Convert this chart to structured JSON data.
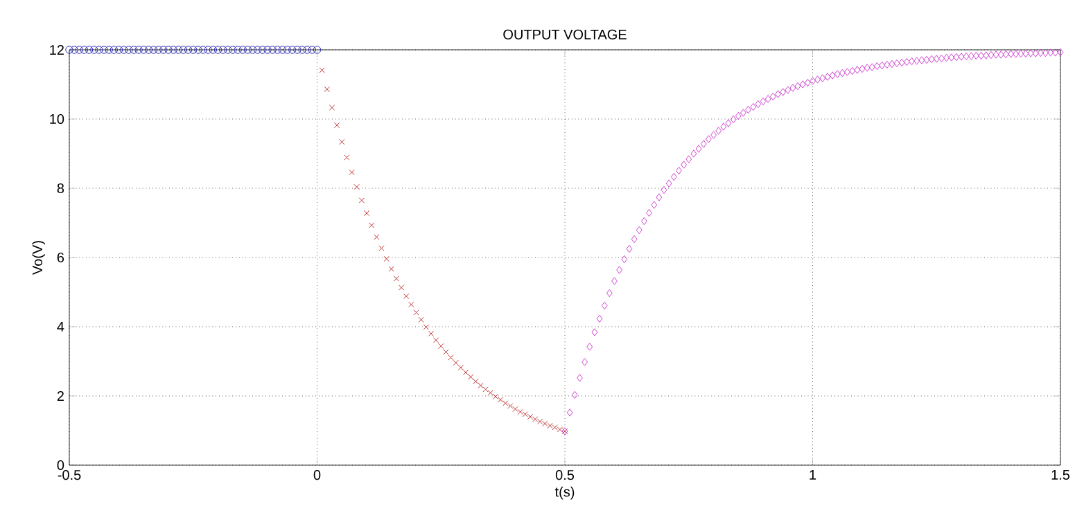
{
  "chart_data": {
    "type": "scatter",
    "title": "OUTPUT VOLTAGE",
    "xlabel": "t(s)",
    "ylabel": "Vo(V)",
    "xlim": [
      -0.5,
      1.5
    ],
    "ylim": [
      0,
      12
    ],
    "xticks": [
      -0.5,
      0,
      0.5,
      1,
      1.5
    ],
    "yticks": [
      0,
      2,
      4,
      6,
      8,
      10,
      12
    ],
    "grid": true,
    "series": [
      {
        "color": "#2a2ab0",
        "marker": "circle",
        "x": [
          -0.5,
          -0.49,
          -0.48,
          -0.47,
          -0.46,
          -0.45,
          -0.44,
          -0.43,
          -0.42,
          -0.41,
          -0.4,
          -0.39,
          -0.38,
          -0.37,
          -0.36,
          -0.35,
          -0.34,
          -0.33,
          -0.32,
          -0.31,
          -0.3,
          -0.29,
          -0.28,
          -0.27,
          -0.26,
          -0.25,
          -0.24,
          -0.23,
          -0.22,
          -0.21,
          -0.2,
          -0.19,
          -0.18,
          -0.17,
          -0.16,
          -0.15,
          -0.14,
          -0.13,
          -0.12,
          -0.11,
          -0.1,
          -0.09,
          -0.08,
          -0.07,
          -0.06,
          -0.05,
          -0.04,
          -0.03,
          -0.02,
          -0.01,
          0
        ],
        "values": [
          12,
          12,
          12,
          12,
          12,
          12,
          12,
          12,
          12,
          12,
          12,
          12,
          12,
          12,
          12,
          12,
          12,
          12,
          12,
          12,
          12,
          12,
          12,
          12,
          12,
          12,
          12,
          12,
          12,
          12,
          12,
          12,
          12,
          12,
          12,
          12,
          12,
          12,
          12,
          12,
          12,
          12,
          12,
          12,
          12,
          12,
          12,
          12,
          12,
          12,
          12
        ]
      },
      {
        "color": "#c03030",
        "marker": "cross",
        "x": [
          0.01,
          0.02,
          0.03,
          0.04,
          0.05,
          0.06,
          0.07,
          0.08,
          0.09,
          0.1,
          0.11,
          0.12,
          0.13,
          0.14,
          0.15,
          0.16,
          0.17,
          0.18,
          0.19,
          0.2,
          0.21,
          0.22,
          0.23,
          0.24,
          0.25,
          0.26,
          0.27,
          0.28,
          0.29,
          0.3,
          0.31,
          0.32,
          0.33,
          0.34,
          0.35,
          0.36,
          0.37,
          0.38,
          0.39,
          0.4,
          0.41,
          0.42,
          0.43,
          0.44,
          0.45,
          0.46,
          0.47,
          0.48,
          0.49,
          0.5
        ],
        "values": [
          11.41,
          10.86,
          10.33,
          9.82,
          9.34,
          8.89,
          8.46,
          8.04,
          7.65,
          7.28,
          6.93,
          6.59,
          6.27,
          5.96,
          5.67,
          5.39,
          5.13,
          4.88,
          4.64,
          4.41,
          4.2,
          3.99,
          3.8,
          3.61,
          3.44,
          3.27,
          3.11,
          2.96,
          2.82,
          2.68,
          2.55,
          2.42,
          2.3,
          2.19,
          2.09,
          1.98,
          1.89,
          1.79,
          1.71,
          1.62,
          1.54,
          1.47,
          1.4,
          1.33,
          1.26,
          1.2,
          1.14,
          1.09,
          1.03,
          0.98
        ]
      },
      {
        "color": "#d040d0",
        "marker": "diamond",
        "x": [
          0.5,
          0.51,
          0.52,
          0.53,
          0.54,
          0.55,
          0.56,
          0.57,
          0.58,
          0.59,
          0.6,
          0.61,
          0.62,
          0.63,
          0.64,
          0.65,
          0.66,
          0.67,
          0.68,
          0.69,
          0.7,
          0.71,
          0.72,
          0.73,
          0.74,
          0.75,
          0.76,
          0.77,
          0.78,
          0.79,
          0.8,
          0.81,
          0.82,
          0.83,
          0.84,
          0.85,
          0.86,
          0.87,
          0.88,
          0.89,
          0.9,
          0.91,
          0.92,
          0.93,
          0.94,
          0.95,
          0.96,
          0.97,
          0.98,
          0.99,
          1,
          1.01,
          1.02,
          1.03,
          1.04,
          1.05,
          1.06,
          1.07,
          1.08,
          1.09,
          1.1,
          1.11,
          1.12,
          1.13,
          1.14,
          1.15,
          1.16,
          1.17,
          1.18,
          1.19,
          1.2,
          1.21,
          1.22,
          1.23,
          1.24,
          1.25,
          1.26,
          1.27,
          1.28,
          1.29,
          1.3,
          1.31,
          1.32,
          1.33,
          1.34,
          1.35,
          1.36,
          1.37,
          1.38,
          1.39,
          1.4,
          1.41,
          1.42,
          1.43,
          1.44,
          1.45,
          1.46,
          1.47,
          1.48,
          1.49,
          1.5
        ],
        "values": [
          0.98,
          1.52,
          2.03,
          2.52,
          2.98,
          3.42,
          3.84,
          4.23,
          4.61,
          4.97,
          5.32,
          5.64,
          5.95,
          6.25,
          6.53,
          6.79,
          7.05,
          7.29,
          7.52,
          7.74,
          7.95,
          8.14,
          8.33,
          8.51,
          8.68,
          8.84,
          9.0,
          9.14,
          9.28,
          9.42,
          9.54,
          9.66,
          9.78,
          9.88,
          9.99,
          10.09,
          10.18,
          10.27,
          10.35,
          10.43,
          10.51,
          10.58,
          10.65,
          10.72,
          10.78,
          10.84,
          10.9,
          10.95,
          11.0,
          11.05,
          11.1,
          11.14,
          11.18,
          11.22,
          11.26,
          11.3,
          11.33,
          11.36,
          11.39,
          11.42,
          11.45,
          11.48,
          11.5,
          11.53,
          11.55,
          11.57,
          11.59,
          11.61,
          11.63,
          11.65,
          11.67,
          11.68,
          11.7,
          11.71,
          11.73,
          11.74,
          11.75,
          11.77,
          11.78,
          11.79,
          11.8,
          11.81,
          11.82,
          11.83,
          11.83,
          11.84,
          11.85,
          11.86,
          11.86,
          11.87,
          11.88,
          11.88,
          11.89,
          11.89,
          11.9,
          11.9,
          11.91,
          11.91,
          11.92,
          11.92,
          11.93
        ]
      }
    ]
  }
}
